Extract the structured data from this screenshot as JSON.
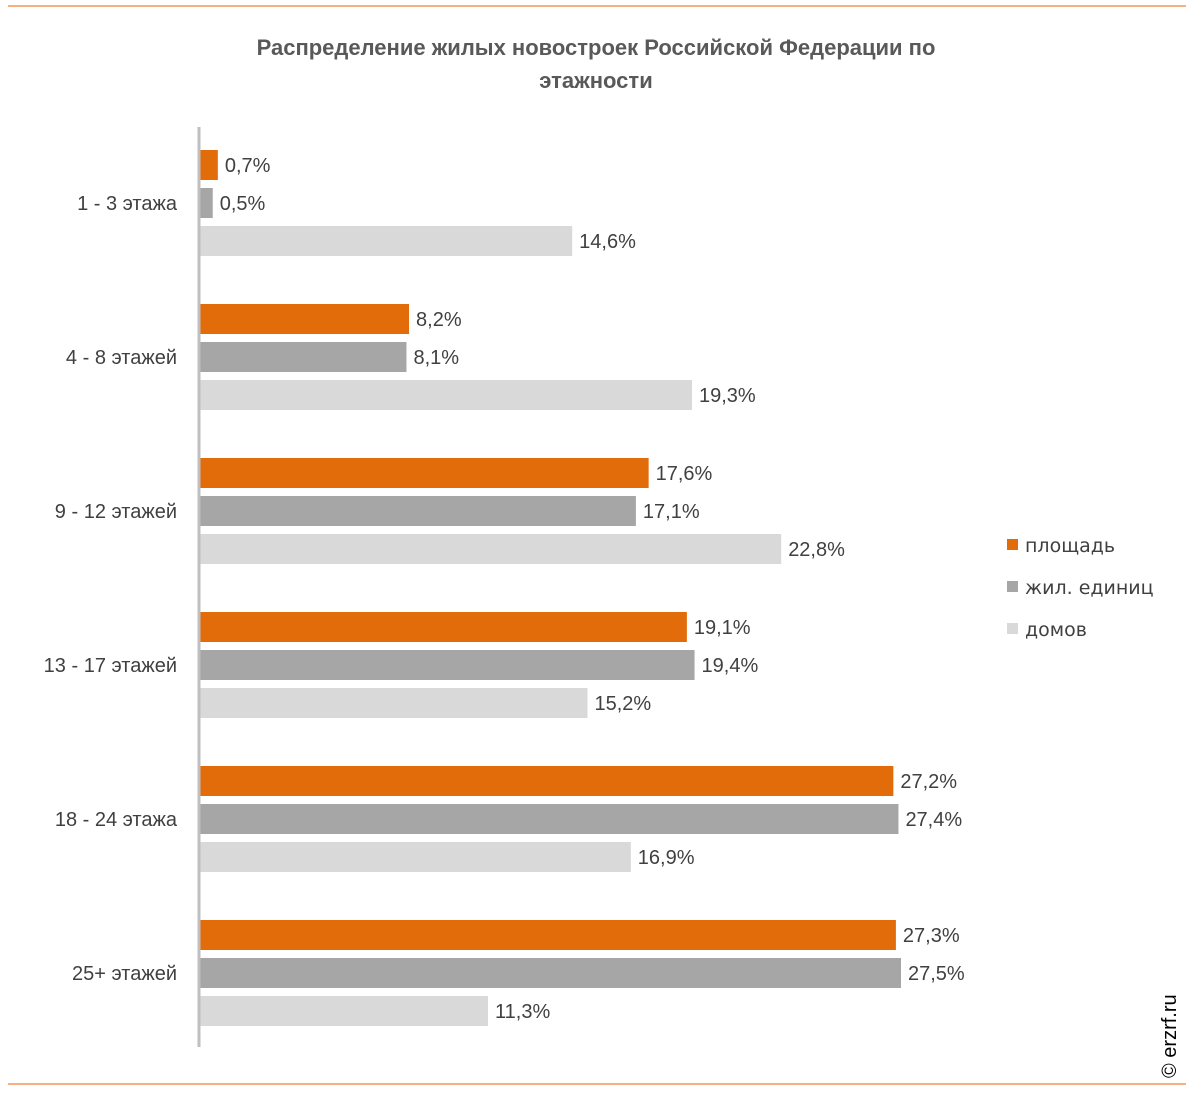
{
  "chart_data": {
    "type": "bar",
    "orientation": "horizontal",
    "title_lines": [
      "Распределение жилых новостроек Российской Федерации по",
      "этажности"
    ],
    "categories": [
      "1 - 3 этажа",
      "4 - 8 этажей",
      "9 - 12 этажей",
      "13 - 17 этажей",
      "18 - 24 этажа",
      "25+ этажей"
    ],
    "series": [
      {
        "name": "площадь",
        "color": "#E36C0A",
        "values": [
          0.7,
          8.2,
          17.6,
          19.1,
          27.2,
          27.3
        ],
        "labels": [
          "0,7%",
          "8,2%",
          "17,6%",
          "19,1%",
          "27,2%",
          "27,3%"
        ]
      },
      {
        "name": "жил. единиц",
        "color": "#A6A6A6",
        "values": [
          0.5,
          8.1,
          17.1,
          19.4,
          27.4,
          27.5
        ],
        "labels": [
          "0,5%",
          "8,1%",
          "17,1%",
          "19,4%",
          "27,4%",
          "27,5%"
        ]
      },
      {
        "name": "домов",
        "color": "#D9D9D9",
        "values": [
          14.6,
          19.3,
          22.8,
          15.2,
          16.9,
          11.3
        ],
        "labels": [
          "14,6%",
          "19,3%",
          "22,8%",
          "15,2%",
          "16,9%",
          "11,3%"
        ]
      }
    ],
    "unit": "%",
    "xlim": [
      0,
      27.5
    ],
    "grid": false,
    "legend_position": "right"
  },
  "colors": {
    "frame_line": "#F4B183",
    "axis": "#BFBFBF"
  },
  "watermark": "© erzrf.ru"
}
